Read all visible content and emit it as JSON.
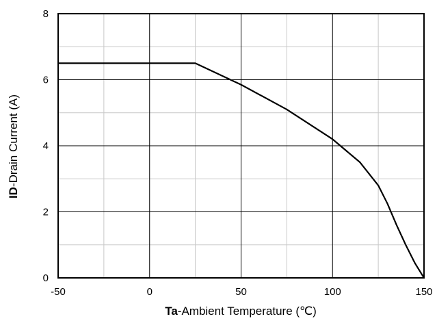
{
  "chart_data": {
    "type": "line",
    "title": "",
    "xlabel_bold": "Ta",
    "xlabel_rest": "-Ambient Temperature (℃)",
    "ylabel_bold": "ID",
    "ylabel_rest": "-Drain Current (A)",
    "xlim": [
      -50,
      150
    ],
    "ylim": [
      0,
      8
    ],
    "x_ticks": [
      -50,
      0,
      50,
      100,
      150
    ],
    "y_ticks": [
      0,
      2,
      4,
      6,
      8
    ],
    "x_tick_labels": [
      "-50",
      "0",
      "50",
      "100",
      "150"
    ],
    "y_tick_labels": [
      "0",
      "2",
      "4",
      "6",
      "8"
    ],
    "grid": true,
    "x_minor_step": 25,
    "y_minor_step": 1,
    "series": [
      {
        "x": [
          -50,
          25,
          50,
          75,
          100,
          115,
          125,
          130,
          135,
          140,
          145,
          150
        ],
        "y": [
          6.5,
          6.5,
          5.85,
          5.1,
          4.2,
          3.5,
          2.8,
          2.25,
          1.6,
          1.0,
          0.45,
          0
        ]
      }
    ]
  }
}
